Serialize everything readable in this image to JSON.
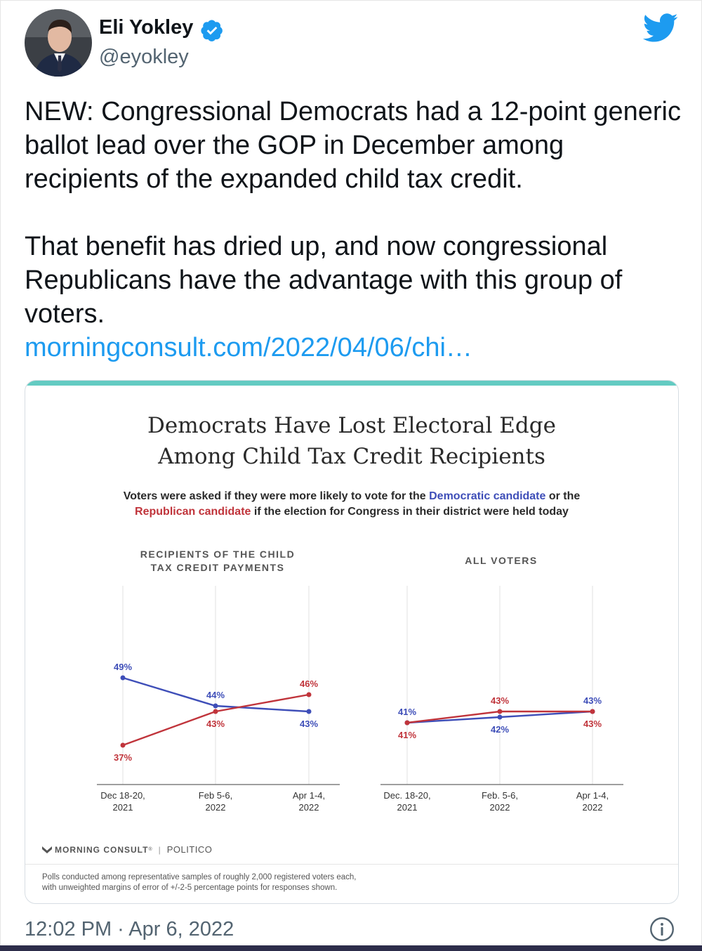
{
  "author": {
    "display_name": "Eli Yokley",
    "handle": "@eyokley"
  },
  "icons": {
    "verified": "verified-badge-icon",
    "brand": "twitter-bird-icon",
    "info": "info-icon",
    "source_logo": "morning-consult-logo-icon"
  },
  "tweet": {
    "paragraph_1": "NEW: Congressional Democrats had a 12-point generic ballot lead over the GOP in December among recipients of the expanded child tax credit.",
    "paragraph_2": "That benefit has dried up, and now congressional Republicans have the advantage with this group of voters.",
    "link_text": "morningconsult.com/2022/04/06/chi…",
    "timestamp": "12:02 PM · Apr 6, 2022"
  },
  "media": {
    "title_line_1": "Democrats Have Lost Electoral Edge",
    "title_line_2": "Among Child Tax Credit Recipients",
    "subtitle_part_1": "Voters were asked if they were more likely to vote for the ",
    "subtitle_dem": "Democratic candidate",
    "subtitle_part_2": " or the",
    "subtitle_rep": "Republican candidate",
    "subtitle_part_3": " if the election for Congress in their district were held today",
    "source_logo_text": "MORNING CONSULT",
    "source_trademark": "®",
    "source_separator": "|",
    "source_partner": "POLITICO",
    "footnote_line_1": "Polls conducted among representative samples of roughly 2,000 registered voters each,",
    "footnote_line_2": "with unweighted margins of error of +/-2-5 percentage points for responses shown."
  },
  "colors": {
    "democratic": "#3e4eb8",
    "republican": "#c0343b",
    "accent": "#63cbc2",
    "link": "#1d9bf0",
    "verified": "#1d9bf0"
  },
  "chart_data": [
    {
      "type": "line",
      "title_line_1": "RECIPIENTS OF THE CHILD",
      "title_line_2": "TAX CREDIT PAYMENTS",
      "categories": [
        "Dec 18-20,\n2021",
        "Feb 5-6,\n2022",
        "Apr 1-4,\n2022"
      ],
      "series": [
        {
          "key": "democratic",
          "values": [
            49,
            44,
            43
          ],
          "labels": [
            "49%",
            "44%",
            "43%"
          ]
        },
        {
          "key": "republican",
          "values": [
            37,
            43,
            46
          ],
          "labels": [
            "37%",
            "43%",
            "46%"
          ]
        }
      ],
      "ylim": [
        30,
        55
      ],
      "grid": "vertical"
    },
    {
      "type": "line",
      "title_line_1": "ALL VOTERS",
      "title_line_2": "",
      "categories": [
        "Dec. 18-20,\n2021",
        "Feb. 5-6,\n2022",
        "Apr 1-4,\n2022"
      ],
      "series": [
        {
          "key": "democratic",
          "values": [
            41,
            42,
            43
          ],
          "labels": [
            "41%",
            "42%",
            "43%"
          ]
        },
        {
          "key": "republican",
          "values": [
            41,
            43,
            43
          ],
          "labels": [
            "41%",
            "43%",
            "43%"
          ]
        }
      ],
      "ylim": [
        30,
        55
      ],
      "grid": "vertical"
    }
  ]
}
